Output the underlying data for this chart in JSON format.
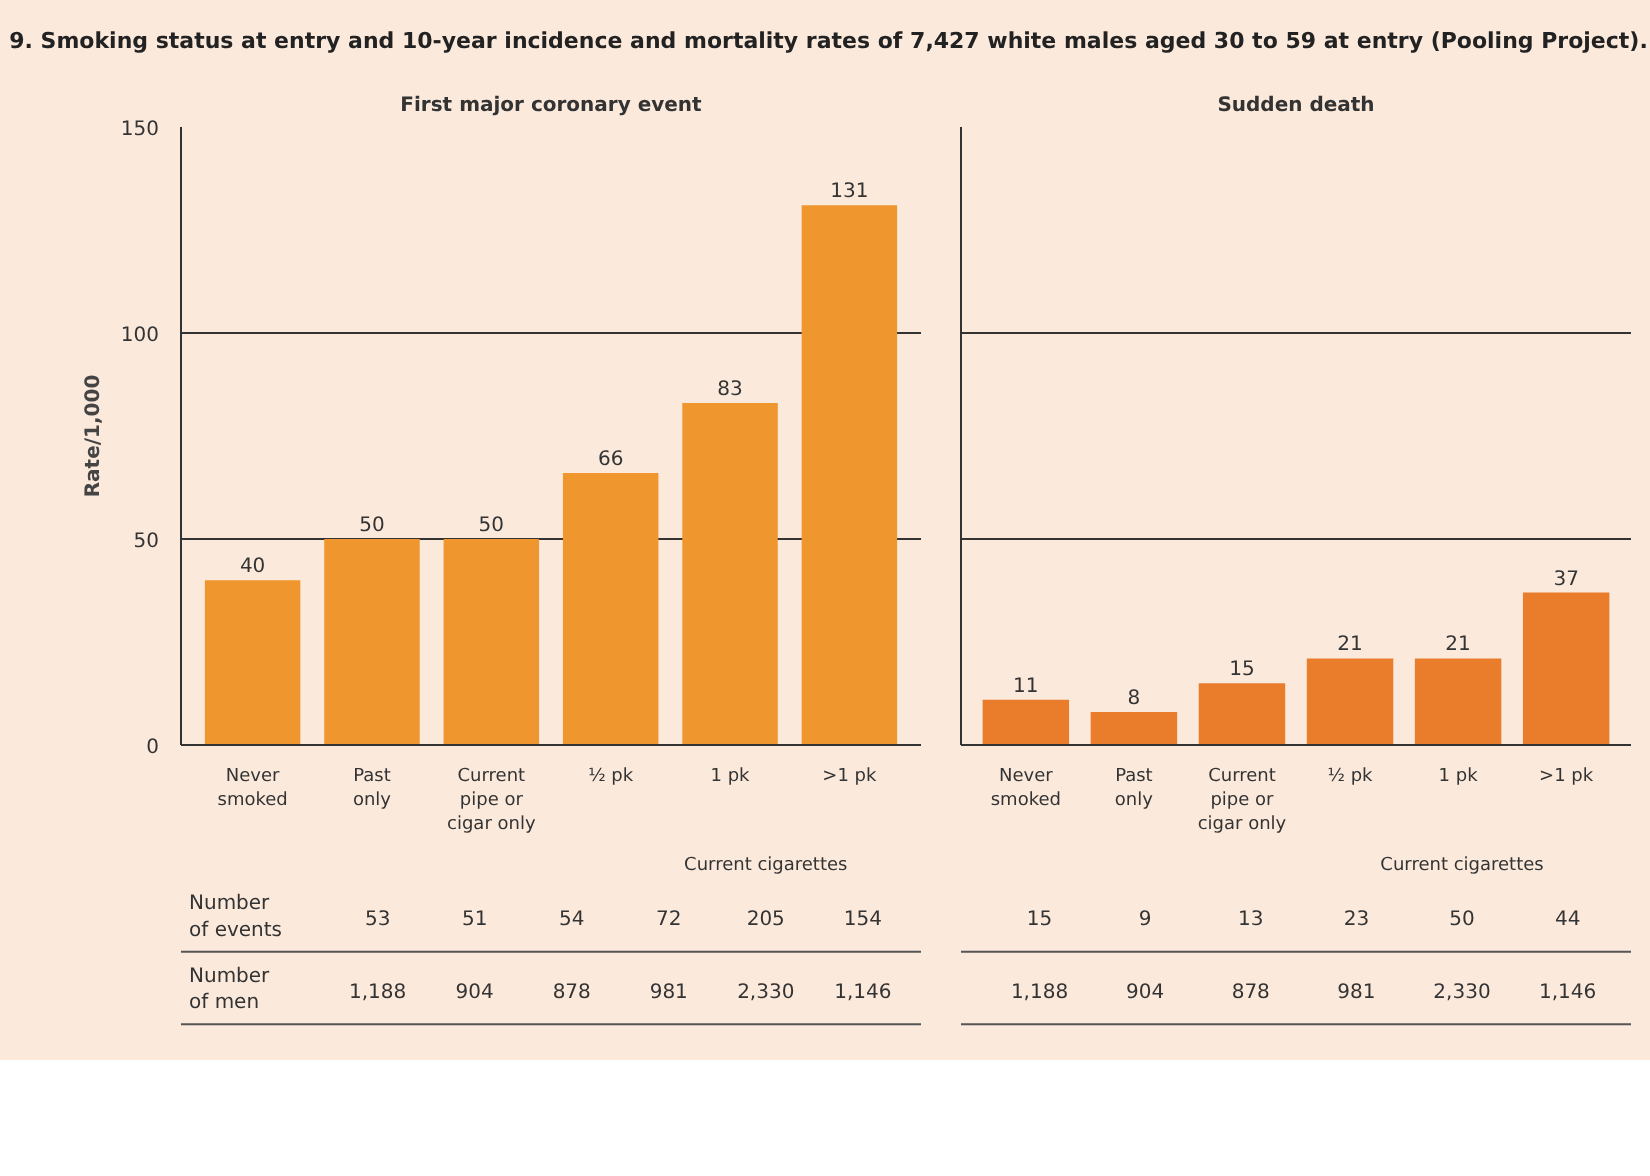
{
  "chart_data": [
    {
      "type": "bar",
      "title": "9. Smoking status at entry and 10-year incidence and mortality rates of 7,427 white males aged 30 to 59 at entry (Pooling Project).",
      "subtitle": "First major coronary event",
      "ylabel": "Rate/1,000",
      "categories": [
        "Never\nsmoked",
        "Past\nonly",
        "Current\npipe or\ncigar only",
        "½ pk",
        "1 pk",
        ">1 pk"
      ],
      "values": [
        40,
        50,
        50,
        66,
        83,
        131
      ],
      "color": "#f0962e",
      "data_labels": true,
      "ylim": [
        0,
        150
      ],
      "yticks": [
        0,
        50,
        100,
        150
      ],
      "grid": "y",
      "annotations": [
        "Current cigarettes",
        "Number\nof events",
        "53",
        "51",
        "54",
        "72",
        "205",
        "154",
        "Number\nof men",
        "1,188",
        "904",
        "878",
        "981",
        "2,330",
        "1,146"
      ]
    },
    {
      "type": "bar",
      "subtitle": "Sudden death",
      "categories": [
        "Never\nsmoked",
        "Past\nonly",
        "Current\npipe or\ncigar only",
        "½ pk",
        "1 pk",
        ">1 pk"
      ],
      "values": [
        11,
        8,
        15,
        21,
        21,
        37
      ],
      "color": "#e97d2c",
      "data_labels": true,
      "ylim": [
        0,
        150
      ],
      "yticks": [
        0,
        50,
        100,
        150
      ],
      "grid": "y",
      "tick_labels": "x",
      "annotations": [
        "Current cigarettes",
        "15",
        "9",
        "13",
        "23",
        "50",
        "44",
        "1,188",
        "904",
        "878",
        "981",
        "2,330",
        "1,146"
      ]
    }
  ]
}
